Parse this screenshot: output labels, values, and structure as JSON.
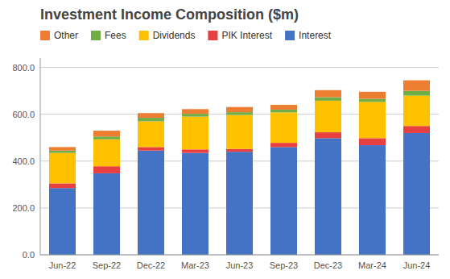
{
  "chart_data": {
    "type": "bar",
    "stacked": true,
    "title": "Investment Income Composition ($m)",
    "categories": [
      "Jun-22",
      "Sep-22",
      "Dec-22",
      "Mar-23",
      "Jun-23",
      "Sep-23",
      "Dec-23",
      "Mar-24",
      "Jun-24"
    ],
    "series": [
      {
        "name": "Interest",
        "color": "#4472C4",
        "values": [
          285,
          348,
          445,
          435,
          440,
          460,
          498,
          468,
          520
        ]
      },
      {
        "name": "PIK Interest",
        "color": "#E84040",
        "values": [
          20,
          30,
          15,
          15,
          12,
          18,
          25,
          30,
          30
        ]
      },
      {
        "name": "Dividends",
        "color": "#FFC000",
        "values": [
          130,
          115,
          110,
          140,
          145,
          130,
          135,
          155,
          130
        ]
      },
      {
        "name": "Fees",
        "color": "#70AD47",
        "values": [
          10,
          12,
          15,
          12,
          12,
          12,
          15,
          13,
          20
        ]
      },
      {
        "name": "Other",
        "color": "#ED7D31",
        "values": [
          15,
          25,
          20,
          20,
          22,
          20,
          30,
          30,
          45
        ]
      }
    ],
    "ylim": [
      0,
      840
    ],
    "yticks": [
      {
        "value": 0,
        "label": "0.0"
      },
      {
        "value": 200,
        "label": "200.0"
      },
      {
        "value": 400,
        "label": "400.0"
      },
      {
        "value": 600,
        "label": "600.0"
      },
      {
        "value": 800,
        "label": "800.0"
      }
    ],
    "grid": true,
    "legend": "top"
  }
}
